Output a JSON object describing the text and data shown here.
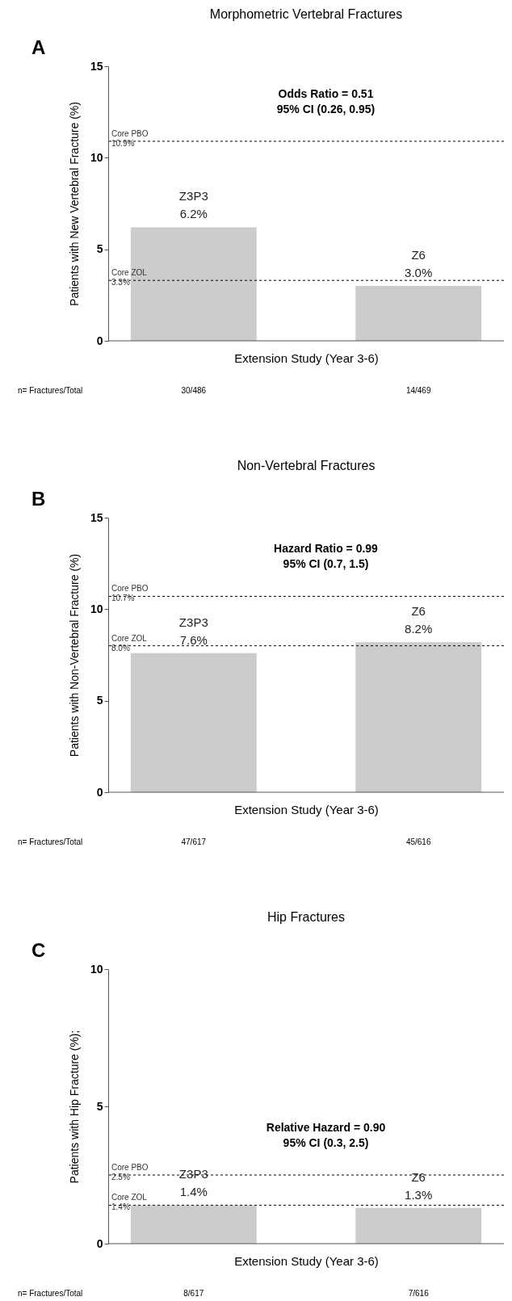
{
  "chart_data": [
    {
      "type": "bar",
      "title": "Morphometric Vertebral Fractures",
      "xlabel": "Extension Study (Year 3-6)",
      "ylabel": "Patients with New Vertebral Fracture (%)",
      "categories": [
        "Z3P3",
        "Z6"
      ],
      "values": [
        6.2,
        3.0
      ],
      "value_labels": [
        "6.2%",
        "3.0%"
      ],
      "color": "#cccccc",
      "ylim": [
        0,
        15
      ],
      "yticks": [
        0,
        5,
        10,
        15
      ],
      "grid": false,
      "tick_labels": "y",
      "ref_lines": [
        {
          "axis": "y",
          "value": 10.9,
          "label": "Core PBO\n10.9%",
          "color": "#000000",
          "line_style": "dashed"
        },
        {
          "axis": "y",
          "value": 3.3,
          "label": "Core ZOL\n3.3%",
          "color": "#000000",
          "line_style": "dashed"
        }
      ],
      "annotations": [
        "A",
        "Odds Ratio = 0.51",
        "95% CI (0.26, 0.95)",
        "n= Fractures/Total",
        "30/486",
        "14/469"
      ]
    },
    {
      "type": "bar",
      "title": "Non-Vertebral Fractures",
      "xlabel": "Extension Study (Year 3-6)",
      "ylabel": "Patients with Non-Vertebral Fracture (%)",
      "categories": [
        "Z3P3",
        "Z6"
      ],
      "values": [
        7.6,
        8.2
      ],
      "value_labels": [
        "7.6%",
        "8.2%"
      ],
      "color": "#cccccc",
      "ylim": [
        0,
        15
      ],
      "yticks": [
        0,
        5,
        10,
        15
      ],
      "grid": false,
      "tick_labels": "y",
      "ref_lines": [
        {
          "axis": "y",
          "value": 10.7,
          "label": "Core PBO\n10.7%",
          "color": "#000000",
          "line_style": "dashed"
        },
        {
          "axis": "y",
          "value": 8.0,
          "label": "Core ZOL\n8.0%",
          "color": "#000000",
          "line_style": "dashed"
        }
      ],
      "annotations": [
        "B",
        "Hazard Ratio = 0.99",
        "95% CI (0.7, 1.5)",
        "n= Fractures/Total",
        "47/617",
        "45/616"
      ]
    },
    {
      "type": "bar",
      "title": "Hip Fractures",
      "xlabel": "Extension Study (Year 3-6)",
      "ylabel": "Patients with Hip Fracture (%);",
      "categories": [
        "Z3P3",
        "Z6"
      ],
      "values": [
        1.4,
        1.3
      ],
      "value_labels": [
        "1.4%",
        "1.3%"
      ],
      "color": "#cccccc",
      "ylim": [
        0,
        10
      ],
      "yticks": [
        0,
        5,
        10
      ],
      "grid": false,
      "tick_labels": "y",
      "ref_lines": [
        {
          "axis": "y",
          "value": 2.5,
          "label": "Core PBO\n2.5%",
          "color": "#000000",
          "line_style": "dashed"
        },
        {
          "axis": "y",
          "value": 1.4,
          "label": "Core ZOL\n1.4%",
          "color": "#000000",
          "line_style": "dashed"
        }
      ],
      "annotations": [
        "C",
        "Relative Hazard = 0.90",
        "95% CI (0.3, 2.5)",
        "n= Fractures/Total",
        "8/617",
        "7/616"
      ]
    }
  ]
}
